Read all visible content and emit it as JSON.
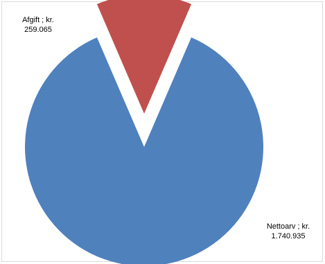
{
  "chart_data": {
    "type": "pie",
    "title": "",
    "slices": [
      {
        "category": "Nettoarv",
        "separator": " ; ",
        "value_text": "kr. 1.740.935",
        "label_lines": [
          "Nettoarv ; kr.",
          "1.740.935"
        ],
        "value": 1740935,
        "color": "#4f81bd",
        "exploded": false
      },
      {
        "category": "Afgift",
        "separator": " ; ",
        "value_text": "kr. 259.065",
        "label_lines": [
          "Afgift ; kr.",
          "259.065"
        ],
        "value": 259065,
        "color": "#c0504d",
        "exploded": true
      }
    ],
    "start_angle_deg": 0,
    "legend": "none"
  }
}
